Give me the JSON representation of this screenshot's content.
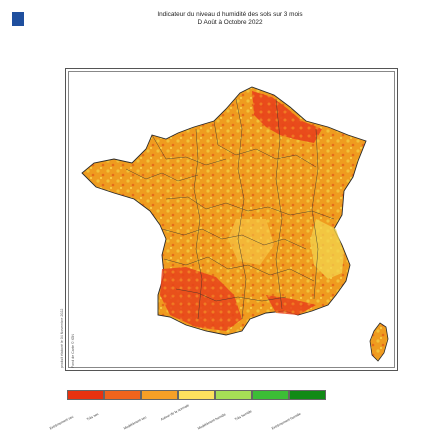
{
  "header": {
    "logo_text": "",
    "title": "Indicateur du niveau d humidité des sols sur 3 mois",
    "subtitle": "D Août à Octobre 2022"
  },
  "side_notes": {
    "produced": "produit élaboré le 04 Novembre 2022",
    "basemap": "Fond de Carte © IGN"
  },
  "legend": {
    "items": [
      {
        "label": "Extrêmement sec",
        "color": "#e8320f"
      },
      {
        "label": "Très sec",
        "color": "#f0641c"
      },
      {
        "label": "Modérément sec",
        "color": "#f7a026"
      },
      {
        "label": "Autour de la normale",
        "color": "#fde25e"
      },
      {
        "label": "Modérément humide",
        "color": "#a6df56"
      },
      {
        "label": "Très humide",
        "color": "#3cbe36"
      },
      {
        "label": "Extrêmement humide",
        "color": "#118a16"
      }
    ]
  },
  "map": {
    "sea_color": "#ffffff",
    "border_color": "#2a2a2a",
    "dominant_color": "#f0a021"
  }
}
